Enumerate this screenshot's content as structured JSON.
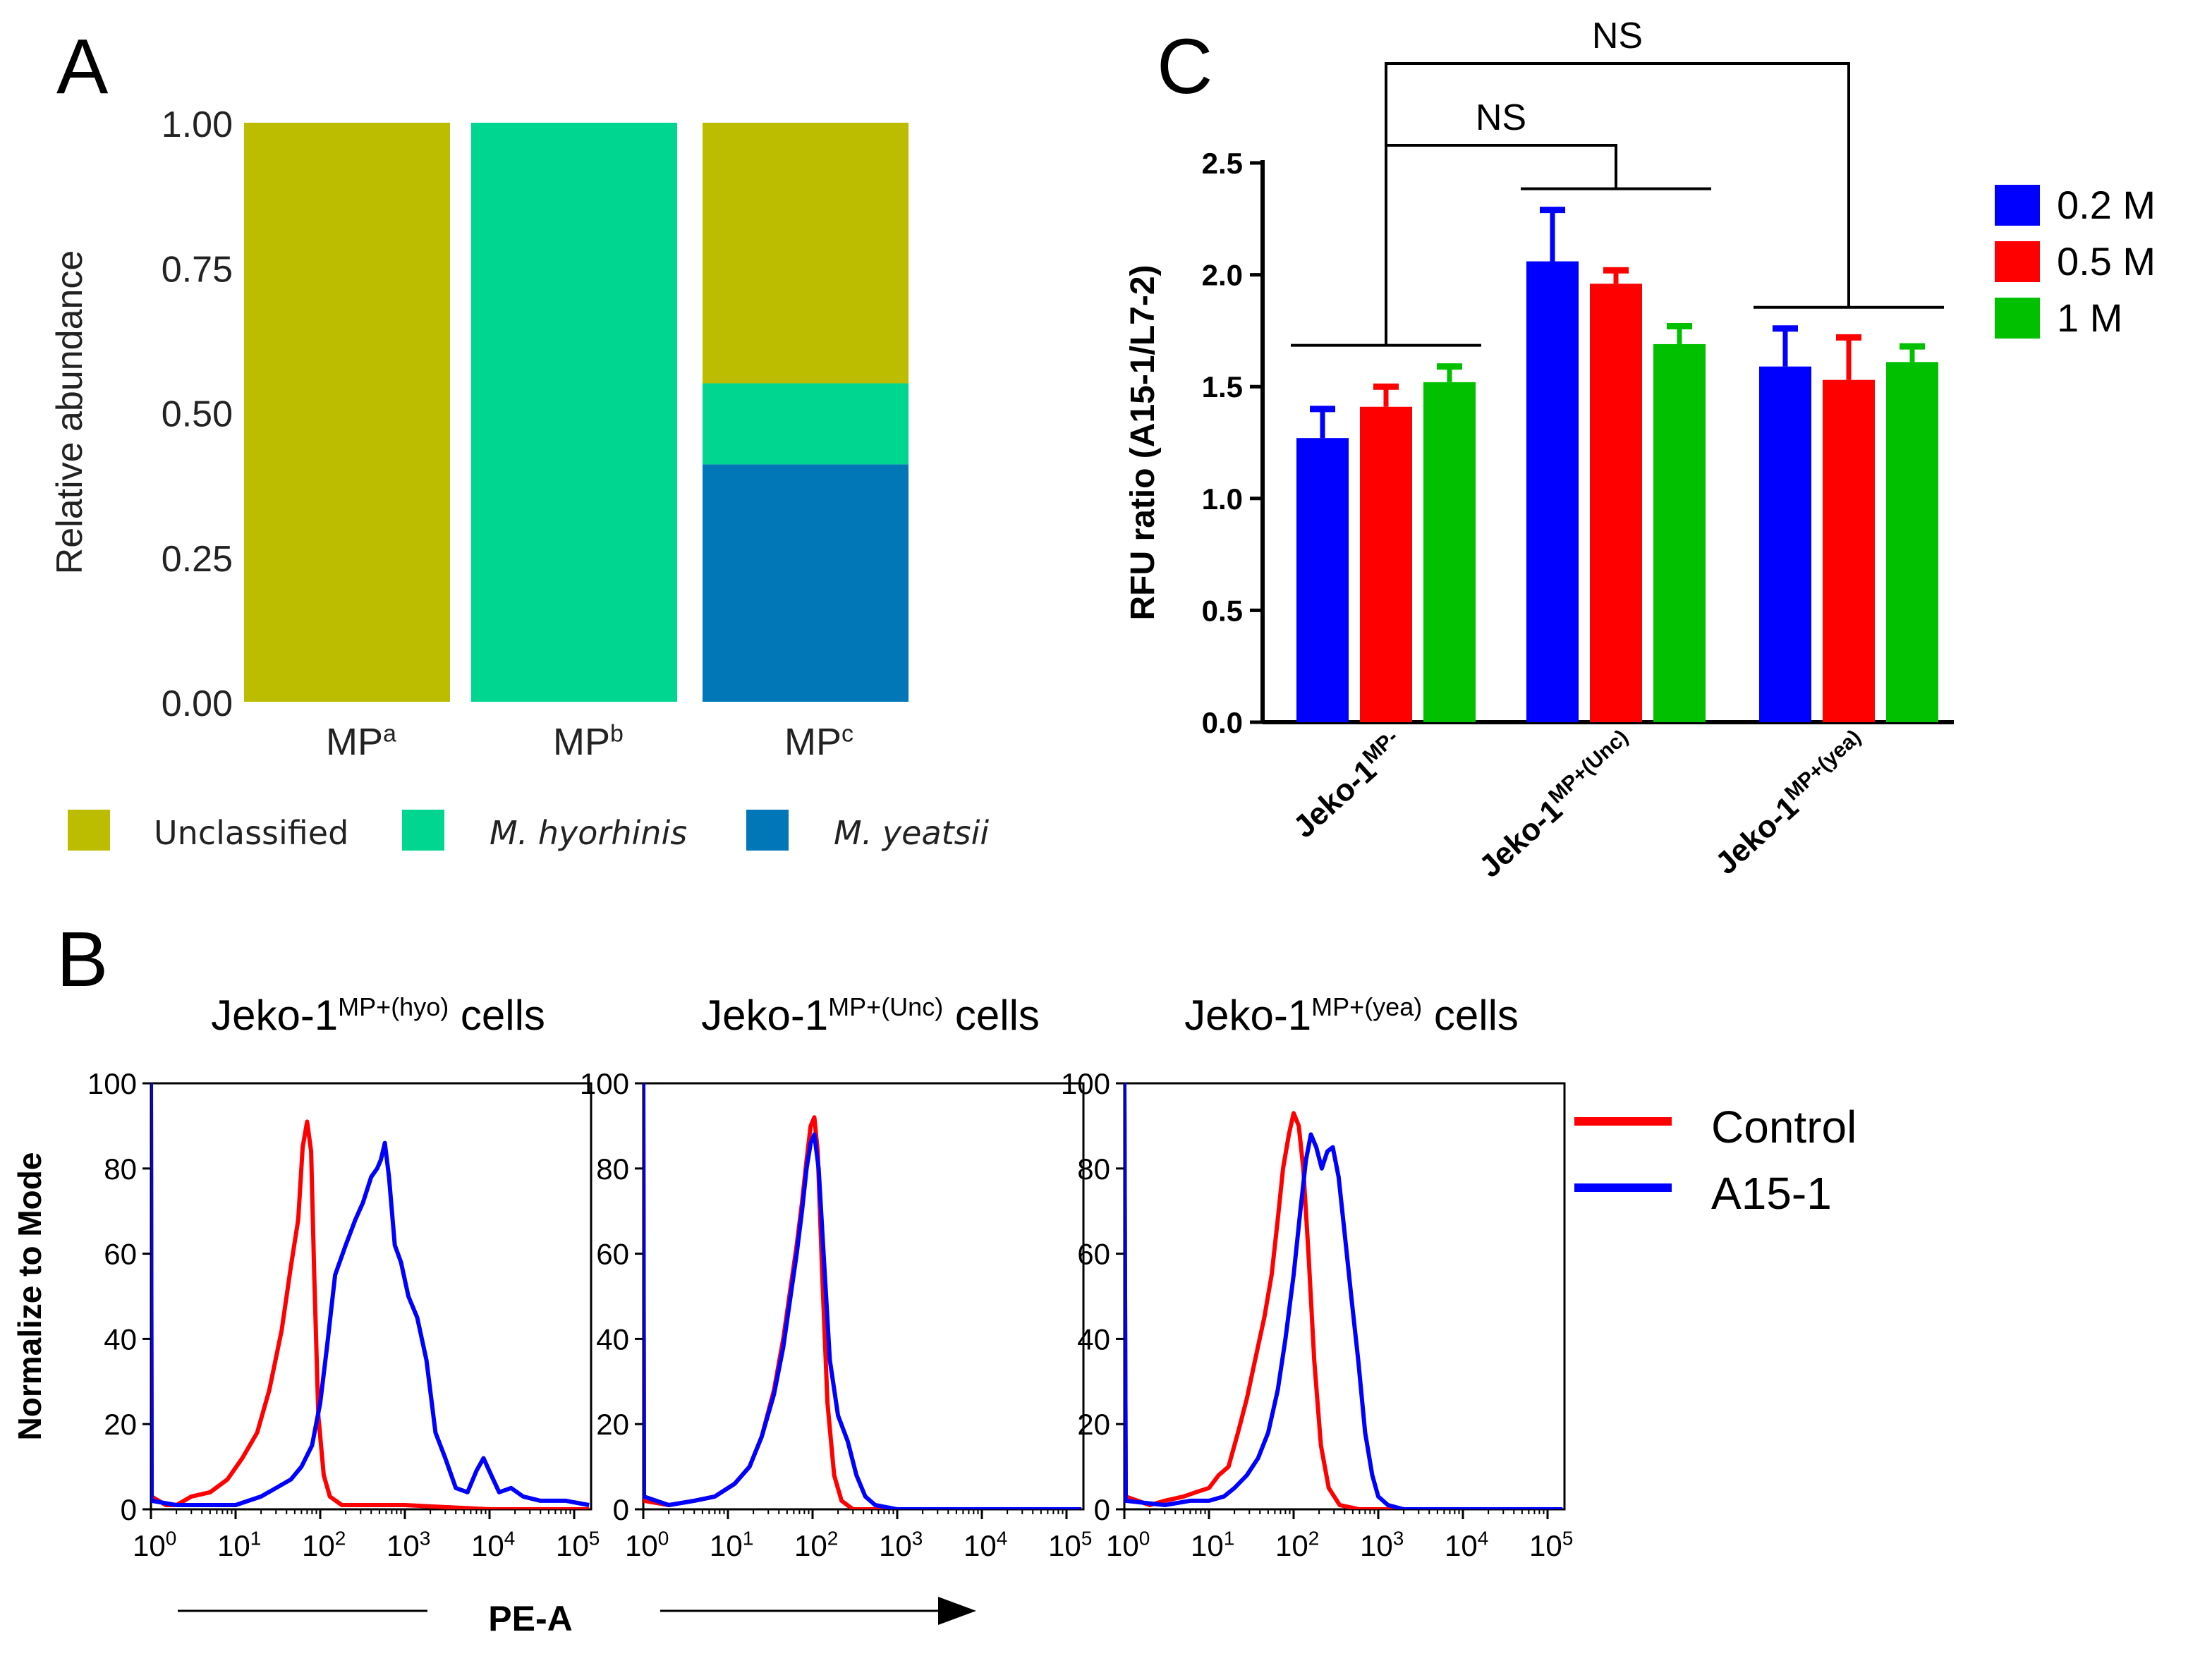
{
  "panels": {
    "A": {
      "letter": "A"
    },
    "B": {
      "letter": "B"
    },
    "C": {
      "letter": "C"
    }
  },
  "chart_data": [
    {
      "panel": "A",
      "type": "bar",
      "stacked": true,
      "ylabel": "Relative abundance",
      "ylim": [
        0,
        1
      ],
      "yticks": [
        "0.00",
        "0.25",
        "0.50",
        "0.75",
        "1.00"
      ],
      "categories": [
        {
          "base": "MP",
          "sup": "a"
        },
        {
          "base": "MP",
          "sup": "b"
        },
        {
          "base": "MP",
          "sup": "c"
        }
      ],
      "series": [
        {
          "name": "M. yeatsii",
          "color": "#0177b8",
          "values": [
            0,
            0,
            0.41
          ]
        },
        {
          "name": "M. hyorhinis",
          "color": "#00d68f",
          "values": [
            0,
            1.0,
            0.14
          ]
        },
        {
          "name": "Unclassified",
          "color": "#bdbd00",
          "values": [
            1.0,
            0,
            0.45
          ]
        }
      ],
      "legend": [
        {
          "label": "Unclassified",
          "color": "#bdbd00",
          "italic": false
        },
        {
          "label": "M. hyorhinis",
          "color": "#00d68f",
          "italic": true
        },
        {
          "label": "M. yeatsii",
          "color": "#0177b8",
          "italic": true
        }
      ]
    },
    {
      "panel": "C",
      "type": "bar",
      "ylabel": "RFU ratio (A15-1/L7-2)",
      "ylim": [
        0,
        2.5
      ],
      "yticks": [
        "0.0",
        "0.5",
        "1.0",
        "1.5",
        "2.0",
        "2.5"
      ],
      "categories": [
        {
          "base": "Jeko-1",
          "sup": "MP-"
        },
        {
          "base": "Jeko-1",
          "sup": "MP+(Unc)"
        },
        {
          "base": "Jeko-1",
          "sup": "MP+(yea)"
        }
      ],
      "series": [
        {
          "name": "0.2 M",
          "color": "#0000ff",
          "values": [
            1.27,
            2.06,
            1.59
          ],
          "errors": [
            0.13,
            0.23,
            0.17
          ]
        },
        {
          "name": "0.5 M",
          "color": "#ff0000",
          "values": [
            1.41,
            1.96,
            1.53
          ],
          "errors": [
            0.09,
            0.06,
            0.19
          ]
        },
        {
          "name": "1 M",
          "color": "#00c000",
          "values": [
            1.52,
            1.69,
            1.61
          ],
          "errors": [
            0.07,
            0.08,
            0.07
          ]
        }
      ],
      "annotations": [
        "NS",
        "NS"
      ]
    },
    {
      "panel": "B",
      "type": "line",
      "xscale": "log",
      "xlabel": "PE-A",
      "ylabel": "Normalize to Mode",
      "ylim": [
        0,
        100
      ],
      "yticks": [
        "0",
        "20",
        "40",
        "60",
        "80",
        "100"
      ],
      "xticks": [
        {
          "base": "10",
          "sup": "0"
        },
        {
          "base": "10",
          "sup": "1"
        },
        {
          "base": "10",
          "sup": "2"
        },
        {
          "base": "10",
          "sup": "3"
        },
        {
          "base": "10",
          "sup": "4"
        },
        {
          "base": "10",
          "sup": "5"
        }
      ],
      "legend": [
        {
          "label": "Control",
          "color": "#ff0000"
        },
        {
          "label": "A15-1",
          "color": "#0000ff"
        }
      ],
      "subplots": [
        {
          "title": {
            "base": "Jeko-1",
            "sup": "MP+(hyo)",
            "suffix": " cells"
          },
          "series": [
            {
              "name": "Control",
              "color": "#ff0000",
              "points": [
                [
                  1,
                  100
                ],
                [
                  1.02,
                  3
                ],
                [
                  1.5,
                  1
                ],
                [
                  2,
                  1
                ],
                [
                  3,
                  3
                ],
                [
                  5,
                  4
                ],
                [
                  8,
                  7
                ],
                [
                  12,
                  12
                ],
                [
                  18,
                  18
                ],
                [
                  25,
                  28
                ],
                [
                  35,
                  42
                ],
                [
                  45,
                  57
                ],
                [
                  55,
                  68
                ],
                [
                  62,
                  85
                ],
                [
                  70,
                  91
                ],
                [
                  78,
                  84
                ],
                [
                  85,
                  55
                ],
                [
                  95,
                  22
                ],
                [
                  110,
                  8
                ],
                [
                  130,
                  3
                ],
                [
                  180,
                  1
                ],
                [
                  300,
                  1
                ],
                [
                  600,
                  1
                ],
                [
                  1000,
                  1
                ],
                [
                  10000,
                  0
                ],
                [
                  150000,
                  0
                ]
              ]
            },
            {
              "name": "A15-1",
              "color": "#0000ff",
              "points": [
                [
                  1,
                  100
                ],
                [
                  1.02,
                  2
                ],
                [
                  2,
                  1
                ],
                [
                  5,
                  1
                ],
                [
                  10,
                  1
                ],
                [
                  20,
                  3
                ],
                [
                  30,
                  5
                ],
                [
                  45,
                  7
                ],
                [
                  60,
                  10
                ],
                [
                  80,
                  15
                ],
                [
                  100,
                  25
                ],
                [
                  120,
                  38
                ],
                [
                  150,
                  55
                ],
                [
                  200,
                  62
                ],
                [
                  260,
                  68
                ],
                [
                  320,
                  72
                ],
                [
                  400,
                  78
                ],
                [
                  470,
                  80
                ],
                [
                  520,
                  82
                ],
                [
                  580,
                  86
                ],
                [
                  650,
                  78
                ],
                [
                  760,
                  62
                ],
                [
                  900,
                  58
                ],
                [
                  1100,
                  50
                ],
                [
                  1400,
                  45
                ],
                [
                  1800,
                  35
                ],
                [
                  2300,
                  18
                ],
                [
                  3000,
                  12
                ],
                [
                  4000,
                  5
                ],
                [
                  5500,
                  4
                ],
                [
                  7000,
                  9
                ],
                [
                  8500,
                  12
                ],
                [
                  10500,
                  8
                ],
                [
                  13000,
                  4
                ],
                [
                  18000,
                  5
                ],
                [
                  25000,
                  3
                ],
                [
                  40000,
                  2
                ],
                [
                  80000,
                  2
                ],
                [
                  150000,
                  1
                ]
              ]
            }
          ]
        },
        {
          "title": {
            "base": "Jeko-1",
            "sup": "MP+(Unc)",
            "suffix": " cells"
          },
          "series": [
            {
              "name": "Control",
              "color": "#ff0000",
              "points": [
                [
                  1,
                  100
                ],
                [
                  1.02,
                  2
                ],
                [
                  2,
                  1
                ],
                [
                  4,
                  2
                ],
                [
                  7,
                  3
                ],
                [
                  12,
                  6
                ],
                [
                  18,
                  10
                ],
                [
                  25,
                  17
                ],
                [
                  35,
                  28
                ],
                [
                  45,
                  40
                ],
                [
                  55,
                  52
                ],
                [
                  65,
                  62
                ],
                [
                  75,
                  72
                ],
                [
                  85,
                  82
                ],
                [
                  95,
                  90
                ],
                [
                  105,
                  92
                ],
                [
                  115,
                  84
                ],
                [
                  130,
                  55
                ],
                [
                  150,
                  25
                ],
                [
                  180,
                  8
                ],
                [
                  220,
                  2
                ],
                [
                  300,
                  0
                ],
                [
                  1000,
                  0
                ],
                [
                  150000,
                  0
                ]
              ]
            },
            {
              "name": "A15-1",
              "color": "#0000ff",
              "points": [
                [
                  1,
                  100
                ],
                [
                  1.02,
                  3
                ],
                [
                  2,
                  1
                ],
                [
                  4,
                  2
                ],
                [
                  7,
                  3
                ],
                [
                  12,
                  6
                ],
                [
                  18,
                  10
                ],
                [
                  25,
                  17
                ],
                [
                  35,
                  27
                ],
                [
                  45,
                  38
                ],
                [
                  55,
                  50
                ],
                [
                  65,
                  60
                ],
                [
                  75,
                  70
                ],
                [
                  85,
                  80
                ],
                [
                  95,
                  86
                ],
                [
                  105,
                  88
                ],
                [
                  118,
                  80
                ],
                [
                  135,
                  60
                ],
                [
                  160,
                  35
                ],
                [
                  200,
                  22
                ],
                [
                  260,
                  16
                ],
                [
                  330,
                  8
                ],
                [
                  420,
                  3
                ],
                [
                  550,
                  1
                ],
                [
                  1000,
                  0
                ],
                [
                  150000,
                  0
                ]
              ]
            }
          ]
        },
        {
          "title": {
            "base": "Jeko-1",
            "sup": "MP+(yea)",
            "suffix": " cells"
          },
          "series": [
            {
              "name": "Control",
              "color": "#ff0000",
              "points": [
                [
                  1,
                  100
                ],
                [
                  1.02,
                  50
                ],
                [
                  1.04,
                  3
                ],
                [
                  2,
                  1
                ],
                [
                  3,
                  2
                ],
                [
                  5,
                  3
                ],
                [
                  7,
                  4
                ],
                [
                  10,
                  5
                ],
                [
                  13,
                  8
                ],
                [
                  17,
                  10
                ],
                [
                  22,
                  18
                ],
                [
                  28,
                  26
                ],
                [
                  35,
                  35
                ],
                [
                  45,
                  45
                ],
                [
                  55,
                  55
                ],
                [
                  65,
                  68
                ],
                [
                  75,
                  80
                ],
                [
                  88,
                  88
                ],
                [
                  100,
                  93
                ],
                [
                  115,
                  90
                ],
                [
                  130,
                  80
                ],
                [
                  150,
                  60
                ],
                [
                  175,
                  35
                ],
                [
                  210,
                  15
                ],
                [
                  260,
                  5
                ],
                [
                  350,
                  1
                ],
                [
                  600,
                  0
                ],
                [
                  150000,
                  0
                ]
              ]
            },
            {
              "name": "A15-1",
              "color": "#0000ff",
              "points": [
                [
                  1,
                  100
                ],
                [
                  1.02,
                  50
                ],
                [
                  1.04,
                  2
                ],
                [
                  3,
                  1
                ],
                [
                  6,
                  2
                ],
                [
                  10,
                  2
                ],
                [
                  15,
                  3
                ],
                [
                  20,
                  5
                ],
                [
                  28,
                  8
                ],
                [
                  38,
                  12
                ],
                [
                  50,
                  18
                ],
                [
                  65,
                  28
                ],
                [
                  80,
                  40
                ],
                [
                  100,
                  55
                ],
                [
                  120,
                  70
                ],
                [
                  140,
                  82
                ],
                [
                  160,
                  88
                ],
                [
                  185,
                  85
                ],
                [
                  215,
                  80
                ],
                [
                  250,
                  84
                ],
                [
                  290,
                  85
                ],
                [
                  340,
                  78
                ],
                [
                  400,
                  65
                ],
                [
                  480,
                  50
                ],
                [
                  580,
                  35
                ],
                [
                  700,
                  18
                ],
                [
                  850,
                  8
                ],
                [
                  1000,
                  3
                ],
                [
                  1300,
                  1
                ],
                [
                  2000,
                  0
                ],
                [
                  150000,
                  0
                ]
              ]
            }
          ]
        }
      ]
    }
  ]
}
